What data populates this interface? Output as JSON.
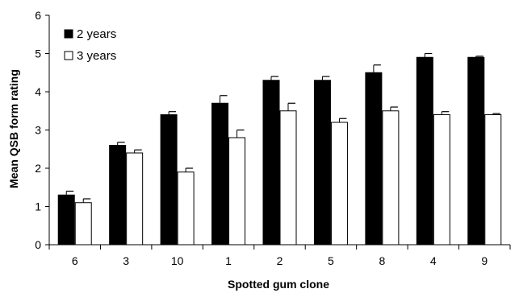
{
  "chart_data": {
    "type": "bar",
    "title": "",
    "xlabel": "Spotted gum clone",
    "ylabel": "Mean QSB form rating",
    "categories": [
      "6",
      "3",
      "10",
      "1",
      "2",
      "5",
      "8",
      "4",
      "9"
    ],
    "ylim": [
      0,
      6
    ],
    "yticks": [
      "0",
      "1",
      "2",
      "3",
      "4",
      "5",
      "6"
    ],
    "grid": false,
    "legend_position": "top-left",
    "series": [
      {
        "name": "2 years",
        "color": "#000000",
        "values": [
          1.3,
          2.6,
          3.4,
          3.7,
          4.3,
          4.3,
          4.5,
          4.9,
          4.9
        ],
        "errors": [
          0.1,
          0.08,
          0.08,
          0.2,
          0.1,
          0.1,
          0.2,
          0.1,
          0.03
        ]
      },
      {
        "name": "3 years",
        "color": "#ffffff",
        "values": [
          1.1,
          2.4,
          1.9,
          2.8,
          3.5,
          3.2,
          3.5,
          3.4,
          3.4
        ],
        "errors": [
          0.1,
          0.08,
          0.1,
          0.2,
          0.2,
          0.1,
          0.1,
          0.08,
          0.03
        ]
      }
    ]
  }
}
